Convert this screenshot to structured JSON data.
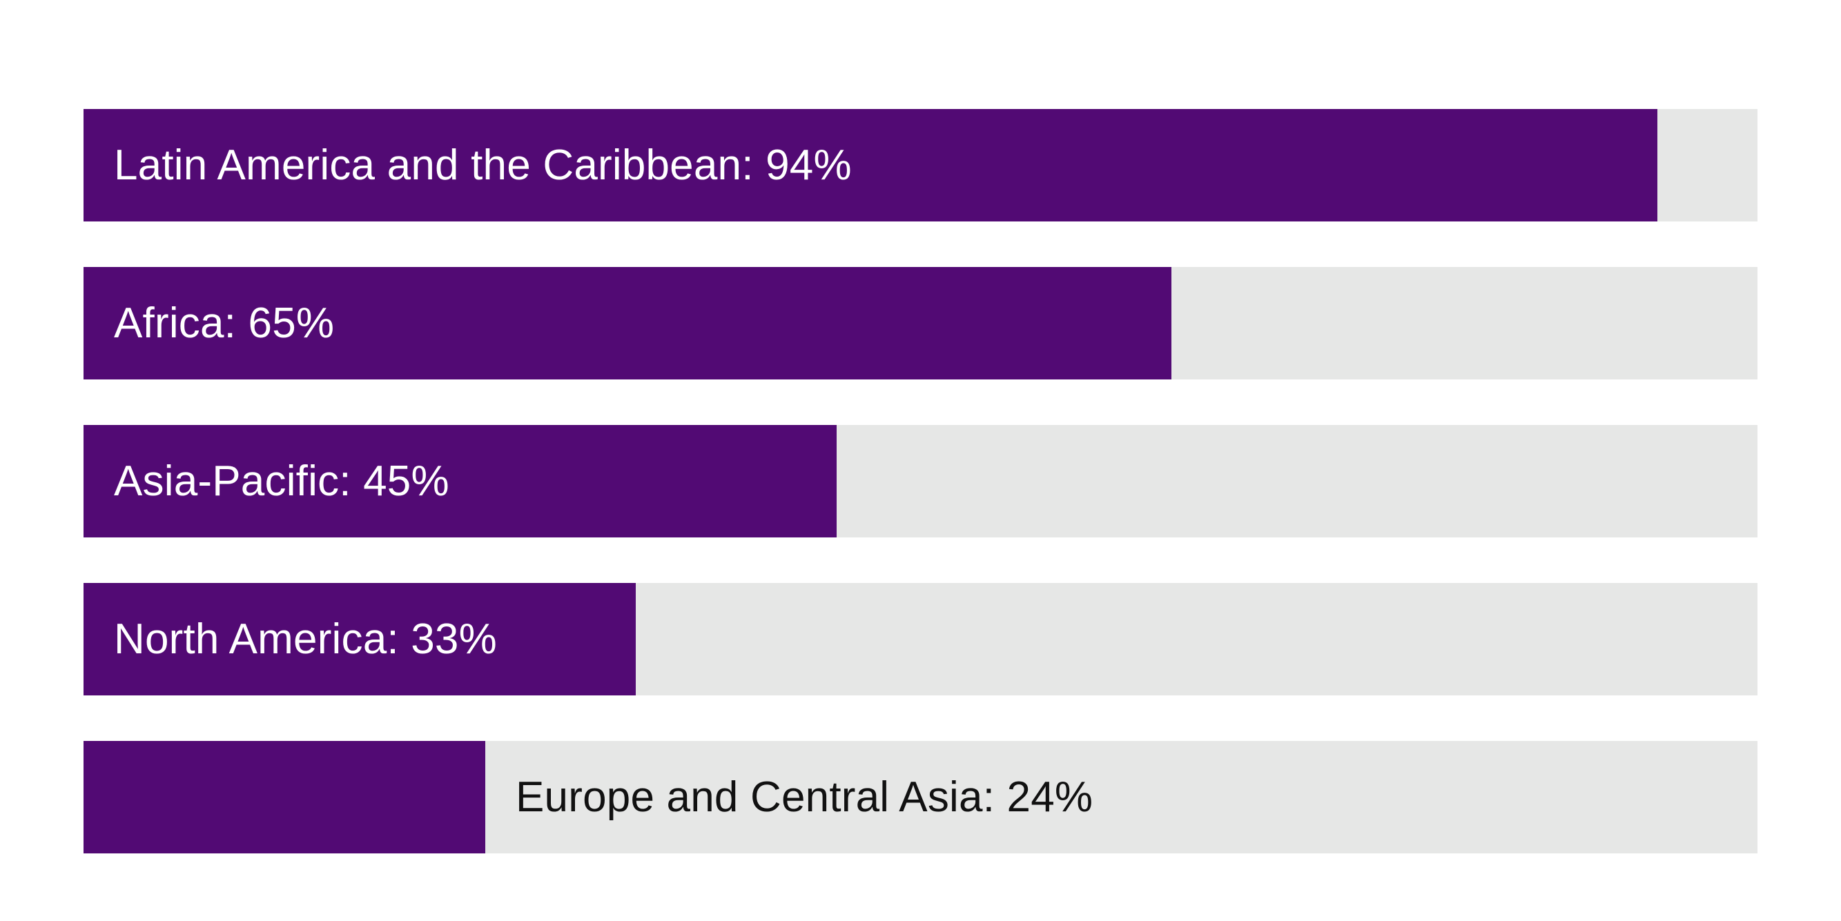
{
  "chart_data": {
    "type": "bar",
    "orientation": "horizontal",
    "title": "",
    "xlabel": "",
    "ylabel": "",
    "xlim": [
      0,
      100
    ],
    "grid": false,
    "legend": "none",
    "colors": {
      "fill": "#520a74",
      "track": "#e6e7e6",
      "label_inside": "#ffffff",
      "label_outside": "#111111"
    },
    "categories": [
      "Latin America and the Caribbean",
      "Africa",
      "Asia-Pacific",
      "North America",
      "Europe and Central Asia"
    ],
    "values": [
      94,
      65,
      45,
      33,
      24
    ],
    "labels": [
      "Latin America and the Caribbean: 94%",
      "Africa: 65%",
      "Asia-Pacific: 45%",
      "North America: 33%",
      "Europe and Central Asia: 24%"
    ],
    "label_placement": [
      "inside",
      "inside",
      "inside",
      "inside",
      "outside"
    ]
  }
}
